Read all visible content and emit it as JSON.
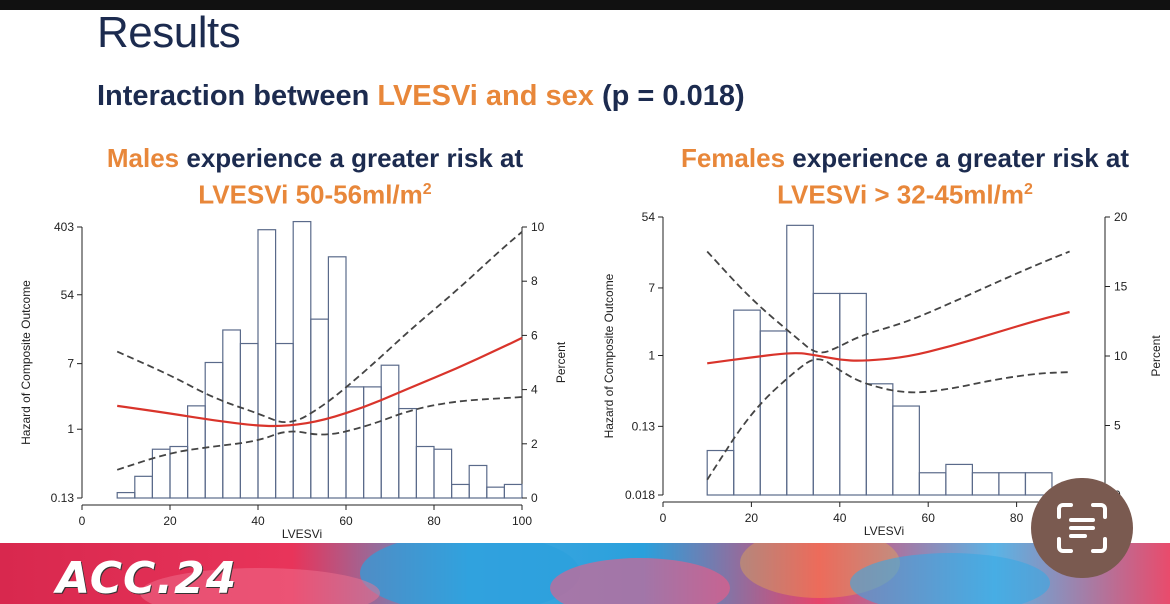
{
  "slide": {
    "title": "Results",
    "subtitle_part1": "Interaction between ",
    "subtitle_part2": "LVESVi and sex",
    "subtitle_part3": " (p = 0.018)",
    "left_heading_a": "Males",
    "left_heading_b": " experience a greater risk at",
    "left_heading_c": "LVESVi 50-56ml/m",
    "left_heading_sup": "2",
    "right_heading_a": "Females",
    "right_heading_b": " experience a greater risk at",
    "right_heading_c": "LVESVi > 32-45ml/m",
    "right_heading_sup": "2",
    "banner_logo": "ACC.24",
    "colors": {
      "navy": "#1c2b4f",
      "orange": "#e8873a",
      "curve": "#d9342b",
      "ci": "#444444",
      "bars": "#5a6a8a"
    }
  },
  "chart_data": [
    {
      "type": "bar+line",
      "panel": "left",
      "xlabel": "LVESVi",
      "ylabel": "Hazard of Composite Outcome",
      "y2label": "Percent",
      "xlim": [
        0,
        100
      ],
      "x_ticks": [
        0,
        20,
        40,
        60,
        80,
        100
      ],
      "y_ticks": [
        "403",
        "54",
        "7",
        "1",
        "0.13"
      ],
      "y_log_range": [
        0.13,
        403
      ],
      "y2lim": [
        0,
        10
      ],
      "y2_ticks": [
        0,
        2,
        4,
        6,
        8,
        10
      ],
      "bars": {
        "bin_width": 4,
        "bin_starts": [
          8,
          12,
          16,
          20,
          24,
          28,
          32,
          36,
          40,
          44,
          48,
          52,
          56,
          60,
          64,
          68,
          72,
          76,
          80,
          84,
          88,
          92,
          96
        ],
        "percent": [
          0.2,
          0.8,
          1.8,
          1.9,
          3.4,
          5.0,
          6.2,
          5.7,
          9.9,
          5.7,
          10.2,
          6.6,
          8.9,
          4.1,
          4.1,
          4.9,
          3.3,
          1.9,
          1.8,
          0.5,
          1.2,
          0.4,
          0.5
        ]
      },
      "hazard_curve": {
        "x": [
          8,
          20,
          30,
          40,
          47,
          55,
          65,
          75,
          85,
          95,
          100
        ],
        "y": [
          2.0,
          1.6,
          1.3,
          1.1,
          1.1,
          1.3,
          2.0,
          3.5,
          6.0,
          11.0,
          15.0
        ]
      },
      "ci_upper": {
        "x": [
          8,
          20,
          30,
          40,
          47,
          55,
          65,
          75,
          85,
          95,
          100
        ],
        "y": [
          10.0,
          5.0,
          2.5,
          1.6,
          1.1,
          2.0,
          6.0,
          20.0,
          60.0,
          200.0,
          350.0
        ]
      },
      "ci_lower": {
        "x": [
          8,
          20,
          30,
          40,
          47,
          55,
          65,
          75,
          85,
          95,
          100
        ],
        "y": [
          0.3,
          0.5,
          0.6,
          0.7,
          1.0,
          0.8,
          1.1,
          1.8,
          2.3,
          2.5,
          2.6
        ]
      }
    },
    {
      "type": "bar+line",
      "panel": "right",
      "xlabel": "LVESVi",
      "ylabel": "Hazard of Composite Outcome",
      "y2label": "Percent",
      "xlim": [
        0,
        100
      ],
      "x_ticks": [
        0,
        20,
        40,
        60,
        80
      ],
      "y_ticks": [
        "54",
        "7",
        "1",
        "0.13",
        "0.018"
      ],
      "y_log_range": [
        0.018,
        54
      ],
      "y2lim": [
        0,
        20
      ],
      "y2_ticks": [
        0,
        5,
        10,
        15,
        20
      ],
      "bars": {
        "bin_width": 6,
        "bin_starts": [
          10,
          16,
          22,
          28,
          34,
          40,
          46,
          52,
          58,
          64,
          70,
          76,
          82
        ],
        "percent": [
          3.2,
          13.3,
          11.8,
          19.4,
          14.5,
          14.5,
          8.0,
          6.4,
          1.6,
          2.2,
          1.6,
          1.6,
          1.6
        ]
      },
      "hazard_curve": {
        "x": [
          10,
          20,
          30,
          35,
          40,
          45,
          55,
          65,
          75,
          85,
          92
        ],
        "y": [
          0.8,
          0.95,
          1.1,
          1.0,
          0.88,
          0.85,
          0.95,
          1.3,
          1.9,
          2.8,
          3.5
        ]
      },
      "ci_upper": {
        "x": [
          10,
          20,
          30,
          35,
          40,
          45,
          55,
          65,
          75,
          85,
          92
        ],
        "y": [
          20.0,
          5.0,
          1.7,
          1.0,
          1.3,
          1.8,
          2.6,
          4.5,
          8.0,
          14.0,
          20.0
        ]
      },
      "ci_lower": {
        "x": [
          10,
          20,
          30,
          35,
          40,
          45,
          55,
          65,
          75,
          85,
          92
        ],
        "y": [
          0.028,
          0.2,
          0.65,
          1.0,
          0.65,
          0.45,
          0.33,
          0.38,
          0.5,
          0.6,
          0.62
        ]
      }
    }
  ]
}
